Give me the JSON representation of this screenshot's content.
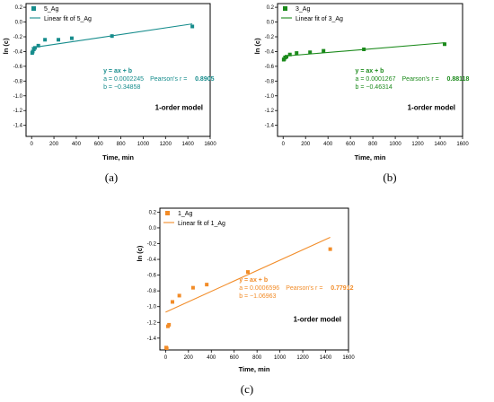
{
  "chart_data": [
    {
      "type": "scatter",
      "panel_label": "(a)",
      "xlabel": "Time, min",
      "ylabel": "ln (c)",
      "xlim": [
        -50,
        1600
      ],
      "ylim": [
        -1.55,
        0.25
      ],
      "xticks": [
        "0",
        "200",
        "400",
        "600",
        "800",
        "1000",
        "1200",
        "1400",
        "1600"
      ],
      "yticks": [
        "0.2",
        "0.0",
        "-0.2",
        "-0.4",
        "-0.6",
        "-0.8",
        "-1.0",
        "-1.2",
        "-1.4"
      ],
      "color": "#168c8c",
      "series": [
        {
          "name": "5_Ag",
          "kind": "points",
          "x": [
            5,
            10,
            20,
            30,
            60,
            120,
            240,
            360,
            720,
            1440
          ],
          "y": [
            -0.42,
            -0.4,
            -0.37,
            -0.35,
            -0.32,
            -0.24,
            -0.24,
            -0.22,
            -0.19,
            -0.06
          ]
        },
        {
          "name": "Linear fit of 5_Ag",
          "kind": "line",
          "slope": 0.0002245,
          "intercept": -0.34858,
          "x_range": [
            0,
            1440
          ]
        }
      ],
      "equation": "y = ax + b",
      "a_text": "a = 0.0002245",
      "b_text": "b = −0.34858",
      "r_label": "Pearson's r = ",
      "r_value": "0.8905",
      "model_label": "1-order model"
    },
    {
      "type": "scatter",
      "panel_label": "(b)",
      "xlabel": "Time, min",
      "ylabel": "ln (c)",
      "xlim": [
        -50,
        1600
      ],
      "ylim": [
        -1.55,
        0.25
      ],
      "xticks": [
        "0",
        "200",
        "400",
        "600",
        "800",
        "1000",
        "1200",
        "1400",
        "1600"
      ],
      "yticks": [
        "0.2",
        "0.0",
        "-0.2",
        "-0.4",
        "-0.6",
        "-0.8",
        "-1.0",
        "-1.2",
        "-1.4"
      ],
      "color": "#1b8a1b",
      "series": [
        {
          "name": "3_Ag",
          "kind": "points",
          "x": [
            5,
            10,
            20,
            30,
            60,
            120,
            240,
            360,
            720,
            1440
          ],
          "y": [
            -0.51,
            -0.5,
            -0.48,
            -0.47,
            -0.44,
            -0.42,
            -0.41,
            -0.39,
            -0.37,
            -0.3
          ]
        },
        {
          "name": "Linear fit of 3_Ag",
          "kind": "line",
          "slope": 0.0001267,
          "intercept": -0.46314,
          "x_range": [
            0,
            1440
          ]
        }
      ],
      "equation": "y = ax + b",
      "a_text": "a = 0.0001267",
      "b_text": "b = −0.46314",
      "r_label": "Pearson's r = ",
      "r_value": "0.88118",
      "model_label": "1-order model"
    },
    {
      "type": "scatter",
      "panel_label": "(c)",
      "xlabel": "Time, min",
      "ylabel": "ln (c)",
      "xlim": [
        -50,
        1600
      ],
      "ylim": [
        -1.55,
        0.25
      ],
      "xticks": [
        "0",
        "200",
        "400",
        "600",
        "800",
        "1000",
        "1200",
        "1400",
        "1600"
      ],
      "yticks": [
        "0.2",
        "0.0",
        "-0.2",
        "-0.4",
        "-0.6",
        "-0.8",
        "-1.0",
        "-1.2",
        "-1.4"
      ],
      "color": "#f28c28",
      "series": [
        {
          "name": "1_Ag",
          "kind": "points",
          "x": [
            5,
            10,
            20,
            30,
            60,
            120,
            240,
            360,
            720,
            1440
          ],
          "y": [
            -1.52,
            -1.53,
            -1.25,
            -1.23,
            -0.94,
            -0.86,
            -0.76,
            -0.72,
            -0.56,
            -0.27
          ]
        },
        {
          "name": "Linear fit of 1_Ag",
          "kind": "line",
          "slope": 0.0006596,
          "intercept": -1.06963,
          "x_range": [
            0,
            1440
          ]
        }
      ],
      "equation": "y = ax + b",
      "a_text": "a = 0.0006596",
      "b_text": "b = −1.06963",
      "r_label": "Pearson's r = ",
      "r_value": "0.77912",
      "model_label": "1-order model"
    }
  ]
}
